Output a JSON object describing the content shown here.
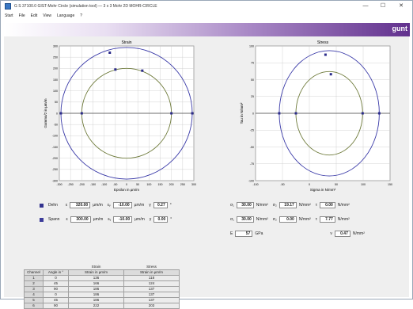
{
  "window": {
    "title": "G S 37100.0 GIST-Mohr Circle (simulation tool) — 3 x 3 Mohr 2D MOHR-CIRCLE",
    "minimize": "—",
    "maximize": "☐",
    "close": "✕"
  },
  "menu": [
    "Start",
    "File",
    "Edit",
    "View",
    "Language",
    "?"
  ],
  "brand": "gunt",
  "colors": {
    "strain": "#33338f",
    "stress": "#3c3c9a",
    "circle": "#3a3aa8",
    "circle2": "#6e7a3a"
  },
  "charts": {
    "left": {
      "title": "Strain",
      "xlabel": "Epsilon in µm/m",
      "ylabel": "Gamma/2 in µm/m",
      "xticks": [
        "-300",
        "-250",
        "-200",
        "-150",
        "-100",
        "-50",
        "0",
        "50",
        "100",
        "150",
        "200",
        "250",
        "300"
      ],
      "yticks": [
        "300",
        "250",
        "200",
        "150",
        "100",
        "50",
        "0",
        "-50",
        "-100",
        "-150",
        "-200",
        "-250",
        "-300"
      ]
    },
    "right": {
      "title": "Stress",
      "xlabel": "Sigma in N/mm²",
      "ylabel": "Tau in N/mm²",
      "xticks": [
        "-100",
        "-50",
        "0",
        "50",
        "100",
        "150"
      ],
      "yticks": [
        "100",
        "75",
        "50",
        "25",
        "0",
        "-25",
        "-50",
        "-75",
        "-100"
      ]
    }
  },
  "chart_data": [
    {
      "type": "scatter",
      "title": "Strain",
      "xlabel": "Epsilon in µm/m",
      "ylabel": "Gamma/2 in µm/m",
      "xlim": [
        -300,
        300
      ],
      "ylim": [
        -300,
        300
      ],
      "grid": true,
      "circles": [
        {
          "center": [
            0,
            0
          ],
          "radius": 293,
          "color": "#3a3aa8"
        },
        {
          "center": [
            0,
            0
          ],
          "radius": 200,
          "color": "#6e7a3a"
        }
      ],
      "points": [
        [
          -293,
          0
        ],
        [
          -200,
          0
        ],
        [
          200,
          0
        ],
        [
          293,
          0
        ],
        [
          -75,
          270
        ],
        [
          -50,
          195
        ],
        [
          70,
          190
        ]
      ]
    },
    {
      "type": "scatter",
      "title": "Stress",
      "xlabel": "Sigma in N/mm²",
      "ylabel": "Tau in N/mm²",
      "xlim": [
        -100,
        150
      ],
      "ylim": [
        -100,
        100
      ],
      "grid": true,
      "circles": [
        {
          "center": [
            37,
            0
          ],
          "radius": 93,
          "color": "#3a3aa8"
        },
        {
          "center": [
            37,
            0
          ],
          "radius": 62,
          "color": "#6e7a3a"
        }
      ],
      "points": [
        [
          -56,
          0
        ],
        [
          -25,
          0
        ],
        [
          99,
          0
        ],
        [
          130,
          0
        ],
        [
          30,
          87
        ],
        [
          40,
          58
        ]
      ]
    }
  ],
  "strain_row": {
    "name": "Dehn",
    "e_label": "ε",
    "e": "320.00",
    "e_unit": "µm/m",
    "ex_label": "εᵧ",
    "ex": "-10.00",
    "ex_unit": "µm/m",
    "g_label": "γ",
    "g": "0.27",
    "g_unit": "°"
  },
  "stress_row": {
    "name": "Spann",
    "e_label": "ε",
    "e": "300.00",
    "e_unit": "µm/m",
    "ex_label": "εᵧ",
    "ex": "-10.00",
    "ex_unit": "µm/m",
    "g_label": "γ",
    "g": "0.00",
    "g_unit": "°"
  },
  "sigma_row1": {
    "s1_label": "σ₁",
    "s1": "30.00",
    "s1_unit": "N/mm²",
    "s2_label": "σ₂",
    "s2": "19.17",
    "s2_unit": "N/mm²",
    "t_label": "τ",
    "t": "0.00",
    "t_unit": "N/mm²"
  },
  "sigma_row2": {
    "s1_label": "σ₁",
    "s1": "30.00",
    "s1_unit": "N/mm²",
    "s2_label": "σ₂",
    "s2": "0.00",
    "s2_unit": "N/mm²",
    "t_label": "τ",
    "t": "7.77",
    "t_unit": "N/mm²"
  },
  "param_row": {
    "a_label": "E",
    "a": "57",
    "a_unit": "GPa",
    "b_label": "ν",
    "b": "0.47",
    "b_unit": "N/mm²"
  },
  "table": {
    "group1": "Strain",
    "group2": "Stress",
    "headers": [
      "Channel",
      "Angle in °",
      "Strain in µm/m",
      "Strain in µm/m"
    ],
    "rows": [
      [
        "1",
        "0",
        "136",
        "118"
      ],
      [
        "2",
        "45",
        "166",
        "124"
      ],
      [
        "3",
        "90",
        "186",
        "137"
      ],
      [
        "4",
        "0",
        "186",
        "137"
      ],
      [
        "5",
        "45",
        "186",
        "137"
      ],
      [
        "6",
        "90",
        "222",
        "203"
      ]
    ]
  }
}
